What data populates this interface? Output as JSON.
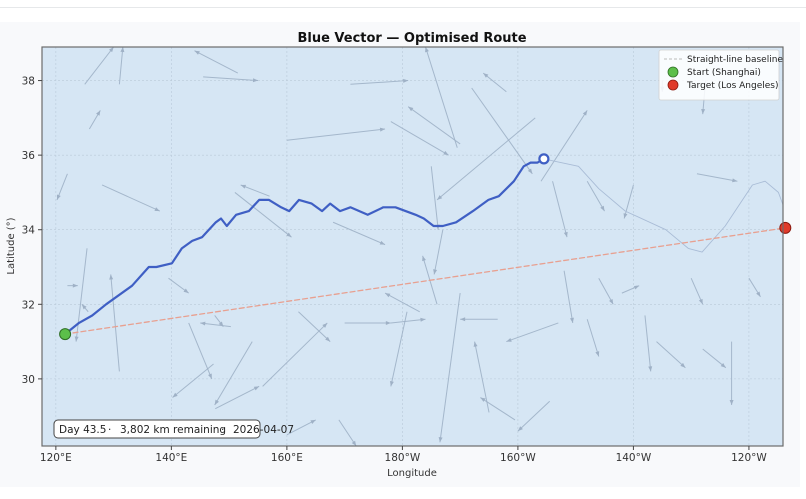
{
  "chart_data": {
    "type": "line",
    "title": "Blue Vector — Optimised Route",
    "xlabel": "Longitude",
    "ylabel": "Latitude (°)",
    "xlim": [
      117.6,
      245.9
    ],
    "ylim": [
      28.2,
      38.9
    ],
    "grid": true,
    "legend_position": "upper right",
    "x_ticks": [
      {
        "value": 120,
        "label": "120°E"
      },
      {
        "value": 140,
        "label": "140°E"
      },
      {
        "value": 160,
        "label": "160°E"
      },
      {
        "value": 180,
        "label": "180°W"
      },
      {
        "value": 200,
        "label": "160°W"
      },
      {
        "value": 220,
        "label": "140°W"
      },
      {
        "value": 240,
        "label": "120°W"
      }
    ],
    "y_ticks": [
      {
        "value": 30,
        "label": "30"
      },
      {
        "value": 32,
        "label": "32"
      },
      {
        "value": 34,
        "label": "34"
      },
      {
        "value": 36,
        "label": "36"
      },
      {
        "value": 38,
        "label": "38"
      }
    ],
    "legend": [
      {
        "label": "Straight-line baseline",
        "kind": "dashed-line",
        "color": "#e8a090"
      },
      {
        "label": "Start (Shanghai)",
        "kind": "marker",
        "color": "#5cbf4a"
      },
      {
        "label": "Target (Los Angeles)",
        "kind": "marker",
        "color": "#e03a2a"
      }
    ],
    "series": [
      {
        "name": "Travelled route",
        "color": "#3f5fc4",
        "points": [
          [
            121.6,
            31.2
          ],
          [
            124.0,
            31.5
          ],
          [
            126.3,
            31.7
          ],
          [
            128.7,
            32.0
          ],
          [
            133.2,
            32.5
          ],
          [
            136.1,
            33.0
          ],
          [
            137.4,
            33.0
          ],
          [
            140.1,
            33.1
          ],
          [
            141.8,
            33.5
          ],
          [
            143.6,
            33.7
          ],
          [
            145.3,
            33.8
          ],
          [
            147.7,
            34.2
          ],
          [
            148.6,
            34.3
          ],
          [
            149.6,
            34.1
          ],
          [
            151.2,
            34.4
          ],
          [
            153.4,
            34.5
          ],
          [
            155.2,
            34.8
          ],
          [
            156.9,
            34.8
          ],
          [
            159.0,
            34.6
          ],
          [
            160.4,
            34.5
          ],
          [
            162.1,
            34.8
          ],
          [
            164.3,
            34.7
          ],
          [
            166.1,
            34.5
          ],
          [
            167.5,
            34.7
          ],
          [
            169.2,
            34.5
          ],
          [
            171.0,
            34.6
          ],
          [
            174.0,
            34.4
          ],
          [
            176.7,
            34.6
          ],
          [
            178.8,
            34.6
          ],
          [
            182.3,
            34.4
          ],
          [
            183.7,
            34.3
          ],
          [
            185.4,
            34.1
          ],
          [
            187.0,
            34.1
          ],
          [
            189.3,
            34.2
          ],
          [
            192.2,
            34.5
          ],
          [
            194.9,
            34.8
          ],
          [
            196.7,
            34.9
          ],
          [
            199.3,
            35.3
          ],
          [
            201.0,
            35.7
          ],
          [
            202.2,
            35.8
          ],
          [
            203.4,
            35.8
          ],
          [
            204.5,
            35.9
          ]
        ]
      },
      {
        "name": "Planned remainder",
        "color": "#a9bcd6",
        "points": [
          [
            204.5,
            35.9
          ],
          [
            210.5,
            35.7
          ],
          [
            214.0,
            35.1
          ],
          [
            218.6,
            34.5
          ],
          [
            225.6,
            34.0
          ],
          [
            229.5,
            33.5
          ],
          [
            231.9,
            33.4
          ],
          [
            235.9,
            34.1
          ],
          [
            240.6,
            35.2
          ],
          [
            242.8,
            35.3
          ],
          [
            245.1,
            35.0
          ],
          [
            246.3,
            34.5
          ],
          [
            246.3,
            34.1
          ]
        ]
      },
      {
        "name": "Straight-line baseline",
        "color": "#e8a090",
        "dashed": true,
        "points": [
          [
            121.6,
            31.2
          ],
          [
            246.3,
            34.05
          ]
        ]
      }
    ],
    "markers": [
      {
        "name": "Start (Shanghai)",
        "lon": 121.6,
        "lat": 31.2,
        "color": "#5cbf4a",
        "edge": "#2f6e25"
      },
      {
        "name": "Target (Los Angeles)",
        "lon": 246.3,
        "lat": 34.05,
        "color": "#e03a2a",
        "edge": "#8a1a10"
      },
      {
        "name": "Current position",
        "lon": 204.5,
        "lat": 35.9,
        "color": "#ffffff",
        "edge": "#3f5fc4"
      }
    ],
    "vector_field": [
      [
        125.0,
        37.9,
        130.0,
        38.9
      ],
      [
        131.0,
        37.9,
        131.6,
        38.9
      ],
      [
        151.5,
        38.2,
        144.0,
        38.8
      ],
      [
        145.5,
        38.1,
        155.0,
        38.0
      ],
      [
        171.0,
        37.9,
        181.0,
        38.0
      ],
      [
        160.0,
        36.4,
        177.0,
        36.7
      ],
      [
        178.0,
        36.9,
        188.0,
        36.0
      ],
      [
        190.0,
        36.3,
        181.0,
        37.3
      ],
      [
        189.5,
        36.2,
        184.0,
        38.9
      ],
      [
        192.0,
        37.8,
        202.5,
        35.5
      ],
      [
        198.0,
        37.7,
        194.0,
        38.2
      ],
      [
        203.0,
        37.0,
        186.0,
        34.8
      ],
      [
        204.0,
        35.3,
        212.0,
        37.2
      ],
      [
        225.0,
        38.0,
        225.0,
        37.7
      ],
      [
        232.5,
        38.0,
        232.0,
        37.1
      ],
      [
        125.8,
        36.7,
        127.7,
        37.2
      ],
      [
        122.0,
        35.5,
        120.2,
        34.8
      ],
      [
        128.0,
        35.2,
        138.0,
        34.5
      ],
      [
        151.0,
        35.0,
        160.8,
        33.8
      ],
      [
        157.0,
        34.9,
        152.0,
        35.2
      ],
      [
        168.0,
        34.2,
        177.0,
        33.6
      ],
      [
        185.0,
        35.7,
        186.2,
        34.0
      ],
      [
        187.0,
        34.0,
        185.5,
        32.8
      ],
      [
        206.0,
        35.3,
        208.5,
        33.8
      ],
      [
        212.0,
        35.3,
        215.0,
        34.5
      ],
      [
        220.0,
        35.2,
        218.4,
        34.3
      ],
      [
        231.0,
        35.5,
        238.0,
        35.3
      ],
      [
        125.4,
        33.5,
        123.5,
        31.0
      ],
      [
        122.0,
        32.5,
        123.8,
        32.5
      ],
      [
        139.5,
        32.7,
        143.0,
        32.3
      ],
      [
        143.0,
        31.5,
        147.0,
        30.0
      ],
      [
        150.3,
        31.4,
        145.0,
        31.5
      ],
      [
        147.5,
        31.7,
        149.0,
        31.4
      ],
      [
        154.0,
        31.0,
        147.5,
        29.3
      ],
      [
        162.0,
        31.8,
        167.5,
        31.0
      ],
      [
        170.0,
        31.5,
        178.0,
        31.5
      ],
      [
        178.0,
        31.5,
        184.0,
        31.6
      ],
      [
        186.0,
        32.0,
        183.5,
        33.3
      ],
      [
        183.0,
        31.8,
        177.0,
        32.3
      ],
      [
        180.8,
        31.8,
        178.0,
        29.8
      ],
      [
        207.0,
        31.5,
        198.0,
        31.0
      ],
      [
        196.5,
        31.6,
        190.0,
        31.6
      ],
      [
        212.0,
        31.6,
        214.0,
        30.6
      ],
      [
        222.0,
        31.7,
        223.0,
        30.2
      ],
      [
        224.0,
        31.0,
        229.0,
        30.3
      ],
      [
        232.0,
        30.8,
        236.0,
        30.3
      ],
      [
        237.0,
        31.0,
        237.0,
        29.3
      ],
      [
        125.6,
        31.8,
        124.5,
        32.0
      ],
      [
        131.0,
        30.2,
        129.5,
        32.8
      ],
      [
        147.3,
        30.4,
        140.2,
        29.5
      ],
      [
        147.6,
        29.2,
        155.2,
        29.8
      ],
      [
        155.8,
        29.8,
        167.0,
        31.5
      ],
      [
        169.0,
        28.9,
        172.0,
        28.2
      ],
      [
        160.0,
        28.5,
        165.0,
        28.9
      ],
      [
        190.0,
        32.3,
        186.5,
        28.3
      ],
      [
        195.0,
        29.1,
        192.5,
        31.0
      ],
      [
        199.5,
        28.9,
        193.5,
        29.5
      ],
      [
        208.0,
        32.9,
        209.5,
        31.5
      ],
      [
        205.5,
        29.4,
        200.0,
        28.6
      ],
      [
        214.0,
        32.7,
        216.5,
        32.0
      ],
      [
        218.0,
        32.3,
        221.0,
        32.5
      ],
      [
        230.0,
        32.7,
        232.0,
        32.0
      ],
      [
        240.0,
        32.7,
        242.0,
        32.2
      ]
    ]
  },
  "status_box": {
    "text": "Day 43.5   ·   3,802 km remaining   ·   2026-04-07",
    "day": "Day 43.5",
    "remaining": "3,802 km remaining",
    "date": "2026-04-07"
  }
}
